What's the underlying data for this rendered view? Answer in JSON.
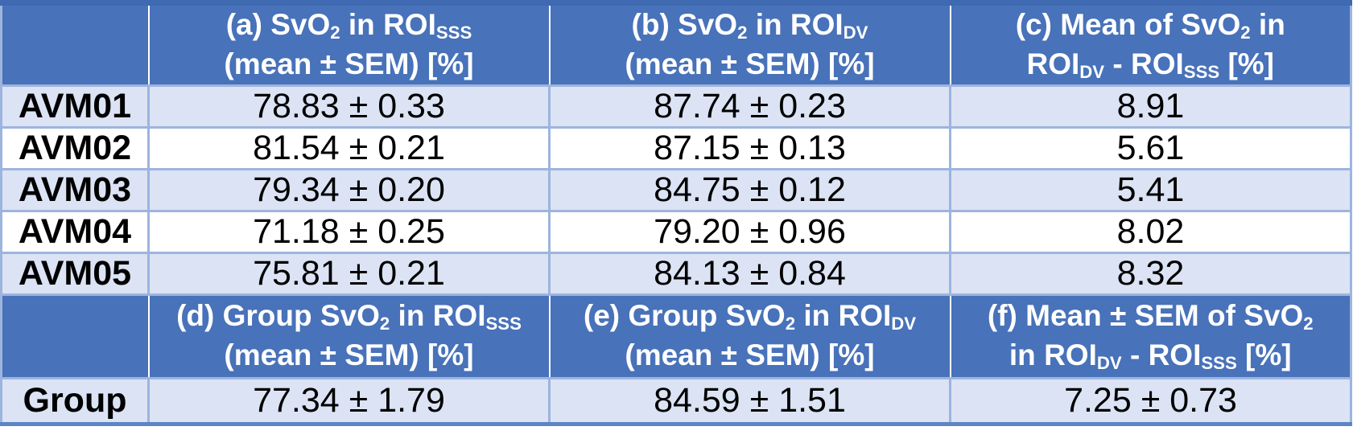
{
  "colors": {
    "header_bg": "#4872b9",
    "band_row_bg": "#dbe3f4",
    "plain_row_bg": "#ffffff",
    "grid_border": "#9db4de",
    "outer_top_border": "#3f69b0",
    "outer_bottom_border": "#5d84c4",
    "header_text": "#ffffff",
    "body_text": "#000000"
  },
  "table": {
    "header_top": [
      {
        "id": "a",
        "segments": [
          {
            "t": "(a) SvO"
          },
          {
            "t": "2",
            "sub": true
          },
          {
            "t": " in ROI"
          },
          {
            "t": "SSS",
            "sub": true
          },
          {
            "br": true
          },
          {
            "t": "(mean ± SEM) [%]"
          }
        ]
      },
      {
        "id": "b",
        "segments": [
          {
            "t": "(b) SvO"
          },
          {
            "t": "2",
            "sub": true
          },
          {
            "t": " in ROI"
          },
          {
            "t": "DV",
            "sub": true
          },
          {
            "br": true
          },
          {
            "t": "(mean ± SEM) [%]"
          }
        ]
      },
      {
        "id": "c",
        "segments": [
          {
            "t": "(c) Mean of SvO"
          },
          {
            "t": "2",
            "sub": true
          },
          {
            "t": " in"
          },
          {
            "br": true
          },
          {
            "t": "ROI"
          },
          {
            "t": "DV",
            "sub": true
          },
          {
            "t": " - ROI"
          },
          {
            "t": "SSS",
            "sub": true
          },
          {
            "t": " [%]"
          }
        ]
      }
    ],
    "rows": [
      {
        "label": "AVM01",
        "a": "78.83 ± 0.33",
        "b": "87.74 ± 0.23",
        "c": "8.91"
      },
      {
        "label": "AVM02",
        "a": "81.54 ± 0.21",
        "b": "87.15 ± 0.13",
        "c": "5.61"
      },
      {
        "label": "AVM03",
        "a": "79.34 ± 0.20",
        "b": "84.75 ± 0.12",
        "c": "5.41"
      },
      {
        "label": "AVM04",
        "a": "71.18 ± 0.25",
        "b": "79.20 ± 0.96",
        "c": "8.02"
      },
      {
        "label": "AVM05",
        "a": "75.81 ± 0.21",
        "b": "84.13 ± 0.84",
        "c": "8.32"
      }
    ],
    "header_bottom": [
      {
        "id": "d",
        "segments": [
          {
            "t": "(d) Group SvO"
          },
          {
            "t": "2",
            "sub": true
          },
          {
            "t": " in ROI"
          },
          {
            "t": "SSS",
            "sub": true
          },
          {
            "br": true
          },
          {
            "t": "(mean ± SEM) [%]"
          }
        ]
      },
      {
        "id": "e",
        "segments": [
          {
            "t": "(e) Group SvO"
          },
          {
            "t": "2",
            "sub": true
          },
          {
            "t": " in ROI"
          },
          {
            "t": "DV",
            "sub": true
          },
          {
            "br": true
          },
          {
            "t": "(mean ± SEM) [%]"
          }
        ]
      },
      {
        "id": "f",
        "segments": [
          {
            "t": "(f) Mean ± SEM of SvO"
          },
          {
            "t": "2",
            "sub": true
          },
          {
            "br": true
          },
          {
            "t": "in ROI"
          },
          {
            "t": "DV",
            "sub": true
          },
          {
            "t": " - ROI"
          },
          {
            "t": "SSS",
            "sub": true
          },
          {
            "t": " [%]"
          }
        ]
      }
    ],
    "group_row": {
      "label": "Group",
      "d": "77.34 ± 1.79",
      "e": "84.59 ± 1.51",
      "f": "7.25 ± 0.73"
    }
  },
  "chart_data": {
    "type": "table",
    "columns_top": [
      "",
      "(a) SvO2 in ROI_SSS (mean ± SEM) [%]",
      "(b) SvO2 in ROI_DV (mean ± SEM) [%]",
      "(c) Mean of SvO2 in ROI_DV - ROI_SSS [%]"
    ],
    "rows": [
      [
        "AVM01",
        "78.83 ± 0.33",
        "87.74 ± 0.23",
        "8.91"
      ],
      [
        "AVM02",
        "81.54 ± 0.21",
        "87.15 ± 0.13",
        "5.61"
      ],
      [
        "AVM03",
        "79.34 ± 0.20",
        "84.75 ± 0.12",
        "5.41"
      ],
      [
        "AVM04",
        "71.18 ± 0.25",
        "79.20 ± 0.96",
        "8.02"
      ],
      [
        "AVM05",
        "75.81 ± 0.21",
        "84.13 ± 0.84",
        "8.32"
      ]
    ],
    "columns_bottom": [
      "",
      "(d) Group SvO2 in ROI_SSS (mean ± SEM) [%]",
      "(e) Group SvO2 in ROI_DV (mean ± SEM) [%]",
      "(f) Mean ± SEM of SvO2 in ROI_DV - ROI_SSS [%]"
    ],
    "group_row": [
      "Group",
      "77.34 ± 1.79",
      "84.59 ± 1.51",
      "7.25 ± 0.73"
    ]
  }
}
